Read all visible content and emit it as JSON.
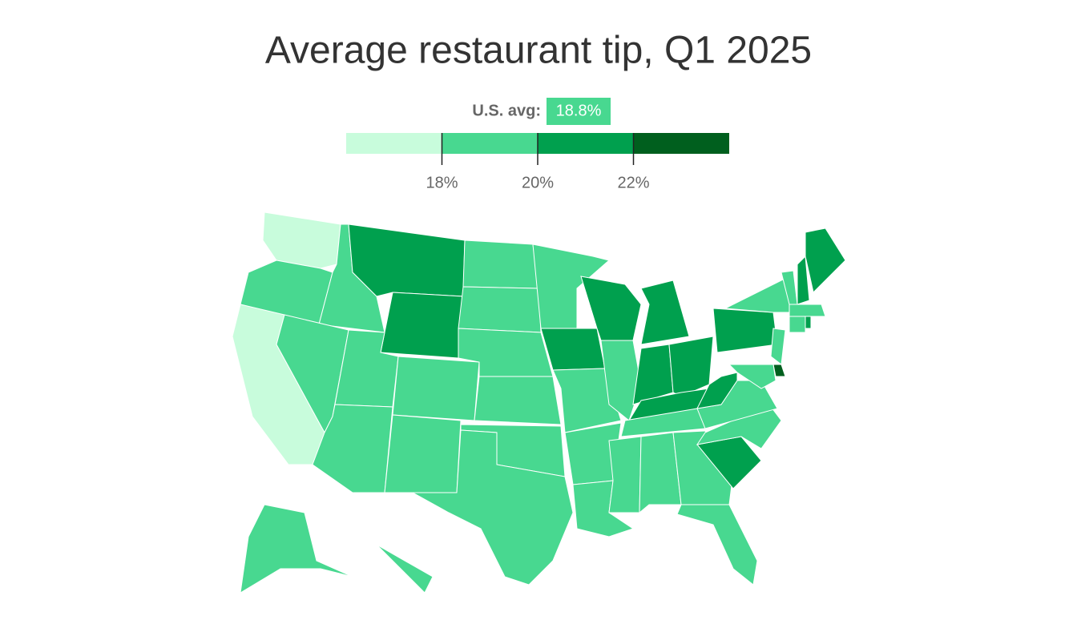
{
  "chart_data": {
    "type": "choropleth",
    "title": "Average restaurant tip, Q1 2025",
    "average": {
      "label": "U.S. avg:",
      "value": {
        "value": 18.8,
        "label": "18.8%"
      }
    },
    "legend": {
      "xlim": [
        16,
        24
      ],
      "bins": [
        {
          "from": 16,
          "to": 18,
          "color": "#c8fcdc"
        },
        {
          "from": 18,
          "to": 20,
          "color": "#48d890"
        },
        {
          "from": 20,
          "to": 22,
          "color": "#00a04e"
        },
        {
          "from": 22,
          "to": 24,
          "color": "#005f1e"
        }
      ],
      "xticks": [
        {
          "value": 18,
          "label": "18%"
        },
        {
          "value": 20,
          "label": "20%"
        },
        {
          "value": 22,
          "label": "22%"
        }
      ]
    },
    "state_bins": [
      0,
      1,
      0,
      1,
      1,
      2,
      2,
      1,
      1,
      1,
      1,
      1,
      1,
      1,
      1,
      1,
      1,
      1,
      2,
      1,
      1,
      1,
      2,
      1,
      2,
      2,
      2,
      2,
      1,
      1,
      1,
      1,
      1,
      2,
      1,
      1,
      2,
      2,
      1,
      1,
      3,
      1,
      1,
      2,
      2,
      1,
      1,
      2,
      1,
      1
    ]
  }
}
